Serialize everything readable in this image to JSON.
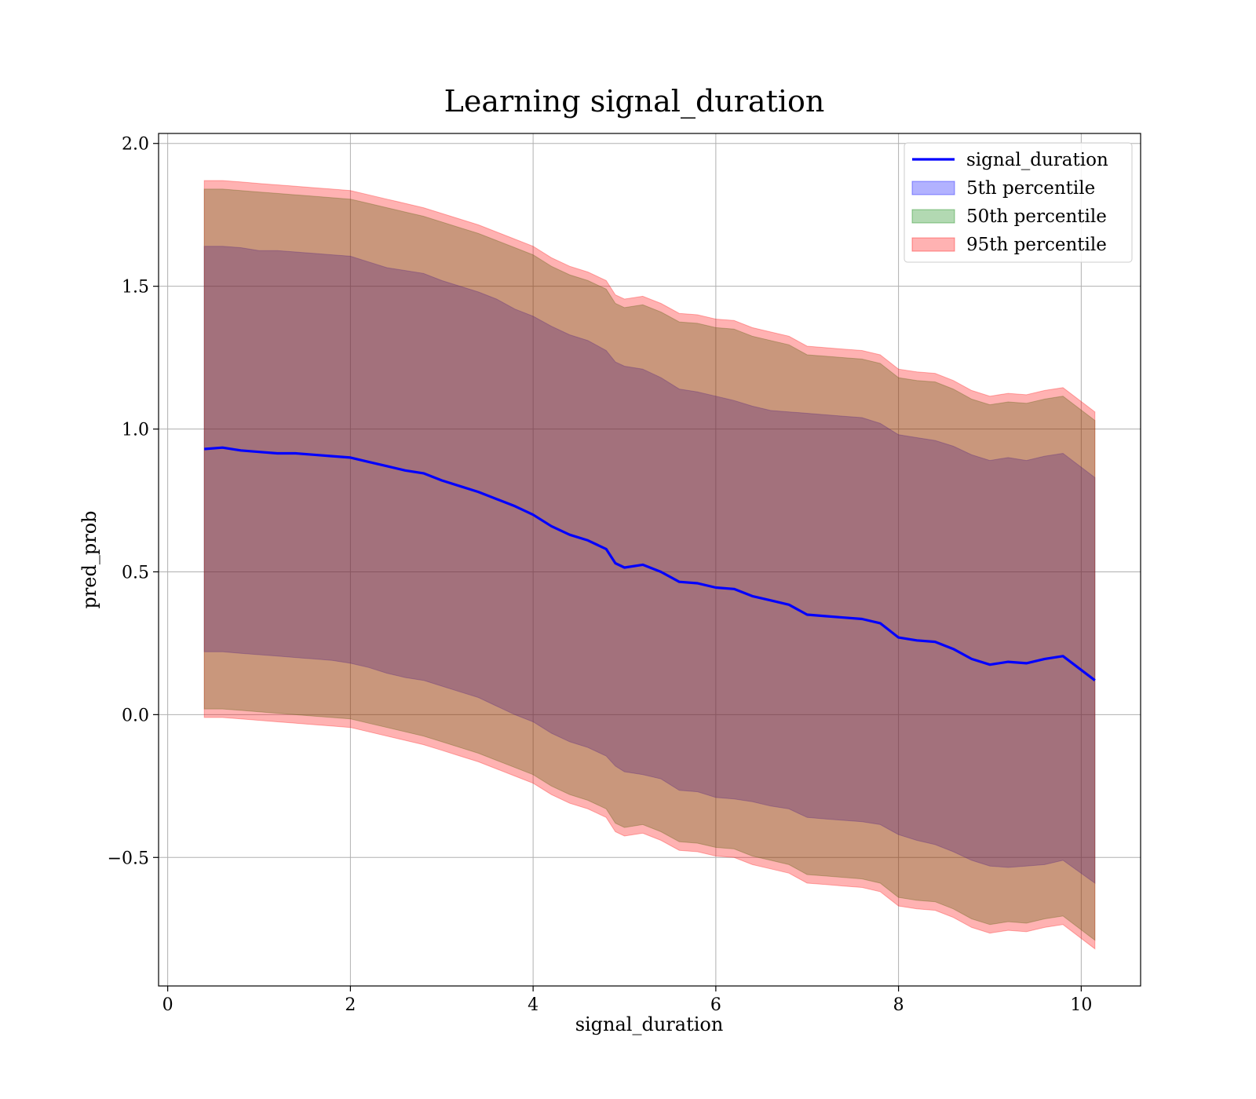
{
  "chart_data": {
    "type": "line",
    "title": "Learning signal_duration",
    "xlabel": "signal_duration",
    "ylabel": "pred_prob",
    "xlim": [
      -0.1,
      10.65
    ],
    "ylim": [
      -0.95,
      2.035
    ],
    "grid": true,
    "legend_position": "top-right",
    "x_ticks": [
      {
        "value": 0,
        "label": "0"
      },
      {
        "value": 2,
        "label": "2"
      },
      {
        "value": 4,
        "label": "4"
      },
      {
        "value": 6,
        "label": "6"
      },
      {
        "value": 8,
        "label": "8"
      },
      {
        "value": 10,
        "label": "10"
      }
    ],
    "y_ticks": [
      {
        "value": -0.5,
        "label": "−0.5"
      },
      {
        "value": 0.0,
        "label": "0.0"
      },
      {
        "value": 0.5,
        "label": "0.5"
      },
      {
        "value": 1.0,
        "label": "1.0"
      },
      {
        "value": 1.5,
        "label": "1.5"
      },
      {
        "value": 2.0,
        "label": "2.0"
      }
    ],
    "x": [
      0.4,
      0.6,
      0.8,
      1.0,
      1.2,
      1.4,
      1.6,
      1.8,
      2.0,
      2.2,
      2.4,
      2.6,
      2.8,
      3.0,
      3.2,
      3.4,
      3.6,
      3.8,
      4.0,
      4.2,
      4.4,
      4.6,
      4.8,
      4.9,
      5.0,
      5.2,
      5.4,
      5.6,
      5.8,
      6.0,
      6.2,
      6.4,
      6.6,
      6.8,
      7.0,
      7.2,
      7.4,
      7.6,
      7.8,
      8.0,
      8.2,
      8.4,
      8.6,
      8.8,
      9.0,
      9.2,
      9.4,
      9.6,
      9.8,
      10.15
    ],
    "series": [
      {
        "name": "signal_duration",
        "color": "#0000ff",
        "values": [
          0.93,
          0.935,
          0.925,
          0.92,
          0.915,
          0.915,
          0.91,
          0.905,
          0.9,
          0.885,
          0.87,
          0.855,
          0.845,
          0.82,
          0.8,
          0.78,
          0.755,
          0.73,
          0.7,
          0.66,
          0.63,
          0.61,
          0.58,
          0.53,
          0.515,
          0.525,
          0.5,
          0.465,
          0.46,
          0.445,
          0.44,
          0.415,
          0.4,
          0.385,
          0.35,
          0.345,
          0.34,
          0.335,
          0.32,
          0.27,
          0.26,
          0.255,
          0.23,
          0.195,
          0.175,
          0.185,
          0.18,
          0.195,
          0.205,
          0.12
        ]
      }
    ],
    "bands": [
      {
        "name": "5th percentile",
        "color": "#0000ff",
        "opacity": 0.3,
        "upper": [
          1.64,
          1.64,
          1.635,
          1.625,
          1.625,
          1.62,
          1.615,
          1.61,
          1.605,
          1.585,
          1.565,
          1.555,
          1.545,
          1.52,
          1.5,
          1.48,
          1.455,
          1.42,
          1.395,
          1.36,
          1.33,
          1.31,
          1.275,
          1.235,
          1.22,
          1.21,
          1.18,
          1.14,
          1.13,
          1.115,
          1.1,
          1.08,
          1.065,
          1.06,
          1.055,
          1.05,
          1.045,
          1.04,
          1.02,
          0.98,
          0.97,
          0.96,
          0.94,
          0.91,
          0.89,
          0.9,
          0.89,
          0.905,
          0.915,
          0.83
        ],
        "lower": [
          0.22,
          0.22,
          0.215,
          0.21,
          0.205,
          0.2,
          0.195,
          0.19,
          0.18,
          0.165,
          0.145,
          0.13,
          0.12,
          0.1,
          0.08,
          0.06,
          0.03,
          0.0,
          -0.025,
          -0.065,
          -0.095,
          -0.115,
          -0.145,
          -0.18,
          -0.2,
          -0.21,
          -0.225,
          -0.265,
          -0.27,
          -0.29,
          -0.295,
          -0.305,
          -0.32,
          -0.33,
          -0.36,
          -0.365,
          -0.37,
          -0.375,
          -0.385,
          -0.42,
          -0.44,
          -0.455,
          -0.48,
          -0.51,
          -0.53,
          -0.535,
          -0.53,
          -0.525,
          -0.51,
          -0.59
        ]
      },
      {
        "name": "50th percentile",
        "color": "#008000",
        "opacity": 0.3,
        "upper": [
          1.84,
          1.84,
          1.835,
          1.83,
          1.825,
          1.82,
          1.815,
          1.81,
          1.805,
          1.79,
          1.775,
          1.76,
          1.745,
          1.725,
          1.705,
          1.685,
          1.66,
          1.635,
          1.61,
          1.57,
          1.54,
          1.52,
          1.49,
          1.44,
          1.425,
          1.435,
          1.41,
          1.375,
          1.37,
          1.355,
          1.35,
          1.325,
          1.31,
          1.295,
          1.26,
          1.255,
          1.25,
          1.245,
          1.23,
          1.18,
          1.17,
          1.165,
          1.14,
          1.105,
          1.085,
          1.095,
          1.09,
          1.105,
          1.115,
          1.03
        ],
        "lower": [
          0.02,
          0.02,
          0.015,
          0.01,
          0.005,
          0.0,
          -0.005,
          -0.01,
          -0.015,
          -0.03,
          -0.045,
          -0.06,
          -0.075,
          -0.095,
          -0.115,
          -0.135,
          -0.16,
          -0.185,
          -0.21,
          -0.25,
          -0.28,
          -0.3,
          -0.33,
          -0.38,
          -0.395,
          -0.385,
          -0.41,
          -0.445,
          -0.45,
          -0.465,
          -0.47,
          -0.495,
          -0.51,
          -0.525,
          -0.56,
          -0.565,
          -0.57,
          -0.575,
          -0.59,
          -0.64,
          -0.65,
          -0.655,
          -0.68,
          -0.715,
          -0.735,
          -0.725,
          -0.73,
          -0.715,
          -0.705,
          -0.79
        ]
      },
      {
        "name": "95th percentile",
        "color": "#ff0000",
        "opacity": 0.3,
        "upper": [
          1.87,
          1.87,
          1.865,
          1.86,
          1.855,
          1.85,
          1.845,
          1.84,
          1.835,
          1.82,
          1.805,
          1.79,
          1.775,
          1.755,
          1.735,
          1.715,
          1.69,
          1.665,
          1.64,
          1.6,
          1.57,
          1.55,
          1.52,
          1.47,
          1.455,
          1.465,
          1.44,
          1.405,
          1.4,
          1.385,
          1.38,
          1.355,
          1.34,
          1.325,
          1.29,
          1.285,
          1.28,
          1.275,
          1.26,
          1.21,
          1.2,
          1.195,
          1.17,
          1.135,
          1.115,
          1.125,
          1.12,
          1.135,
          1.145,
          1.06
        ],
        "lower": [
          -0.01,
          -0.01,
          -0.015,
          -0.02,
          -0.025,
          -0.03,
          -0.035,
          -0.04,
          -0.045,
          -0.06,
          -0.075,
          -0.09,
          -0.105,
          -0.125,
          -0.145,
          -0.165,
          -0.19,
          -0.215,
          -0.24,
          -0.28,
          -0.31,
          -0.33,
          -0.36,
          -0.41,
          -0.425,
          -0.415,
          -0.44,
          -0.475,
          -0.48,
          -0.495,
          -0.5,
          -0.525,
          -0.54,
          -0.555,
          -0.59,
          -0.595,
          -0.6,
          -0.605,
          -0.62,
          -0.67,
          -0.68,
          -0.685,
          -0.71,
          -0.745,
          -0.765,
          -0.755,
          -0.76,
          -0.745,
          -0.735,
          -0.82
        ]
      }
    ]
  }
}
